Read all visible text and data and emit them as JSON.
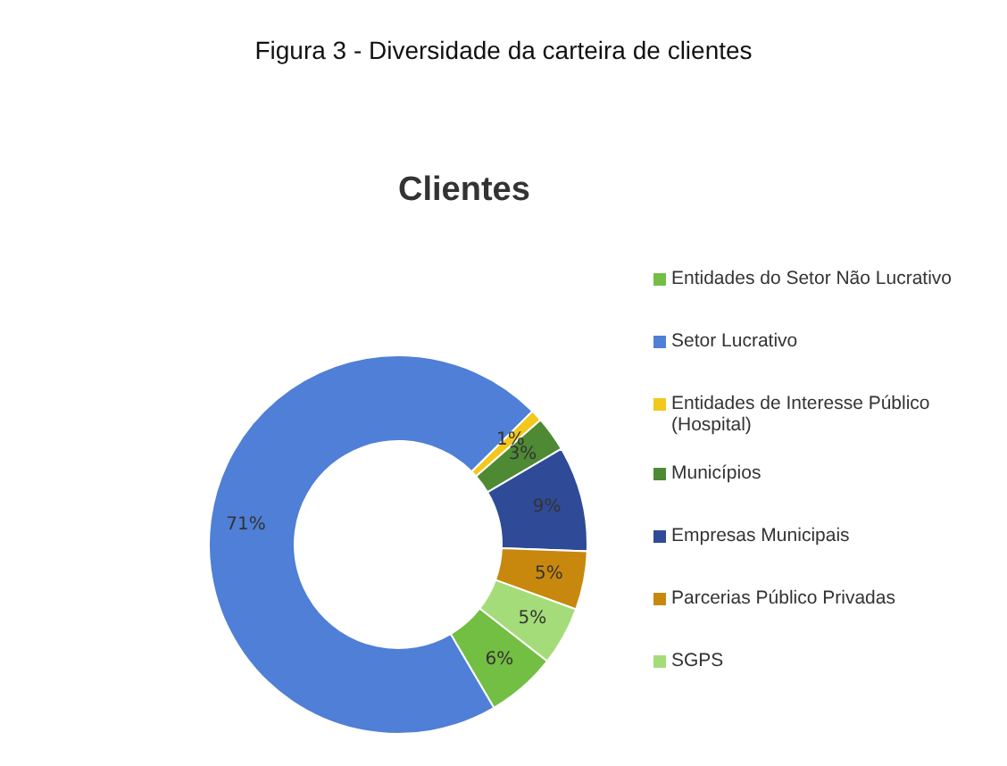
{
  "chart_data": {
    "type": "donut",
    "title": "Clientes",
    "annotations": [
      "Figura 3 - Diversidade da carteira de clientes"
    ],
    "categories": [
      "Entidades do Setor Não Lucrativo",
      "Setor Lucrativo",
      "Entidades de Interesse Público (Hospital)",
      "Municípios",
      "Empresas Municipais",
      "Parcerias Público Privadas",
      "SGPS"
    ],
    "values": [
      6,
      71,
      1,
      3,
      9,
      5,
      5
    ],
    "value_labels": [
      "6%",
      "71%",
      "1%",
      "3%",
      "9%",
      "5%",
      "5%"
    ],
    "colors": [
      "#72bf44",
      "#4f7fd6",
      "#f2c81c",
      "#4e8a34",
      "#2f4a96",
      "#c8880e",
      "#a5dc7a"
    ],
    "legend": "right"
  }
}
